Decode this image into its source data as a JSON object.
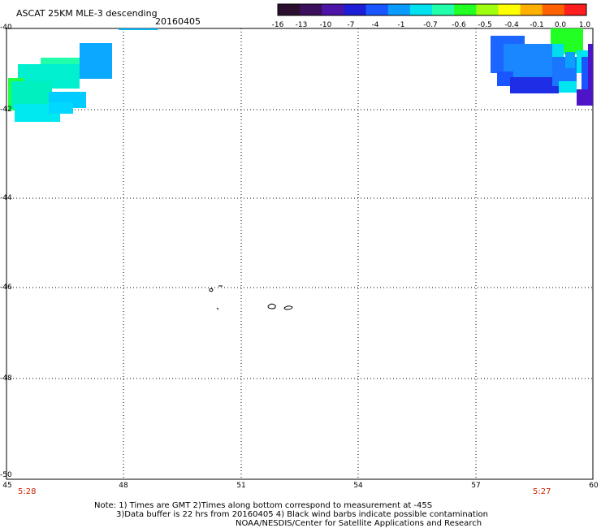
{
  "header": {
    "title": "ASCAT 25KM MLE-3 descending",
    "date": "20160405"
  },
  "colorbar": {
    "labels": [
      "-16",
      "-13",
      "-10",
      "-7",
      "-4",
      "-1",
      "-0.7",
      "-0.6",
      "-0.5",
      "-0.4",
      "-0.1",
      "0.0",
      "1.0"
    ],
    "colors": [
      "#2a0f2e",
      "#3b0f5c",
      "#4d14a8",
      "#1e1ed6",
      "#1a56ff",
      "#0a9bff",
      "#00e1f0",
      "#22ffaa",
      "#22ff22",
      "#a0ff10",
      "#ffff00",
      "#ffb000",
      "#ff6000",
      "#ff1e1e"
    ]
  },
  "axes": {
    "lat_labels": [
      "-40",
      "-42",
      "-44",
      "-46",
      "-48",
      "-50"
    ],
    "lon_labels": [
      "45",
      "48",
      "51",
      "54",
      "57",
      "60"
    ]
  },
  "time_labels": {
    "left": "5:28",
    "right": "5:27"
  },
  "notes": {
    "line1": "Note: 1) Times are GMT 2)Times along bottom correspond to measurement at -45S",
    "line2": "3)Data buffer is 22 hrs from 20160405 4) Black wind barbs indicate possible contamination",
    "line3": "NOAA/NESDIS/Center for Satellite Applications and Research"
  }
}
